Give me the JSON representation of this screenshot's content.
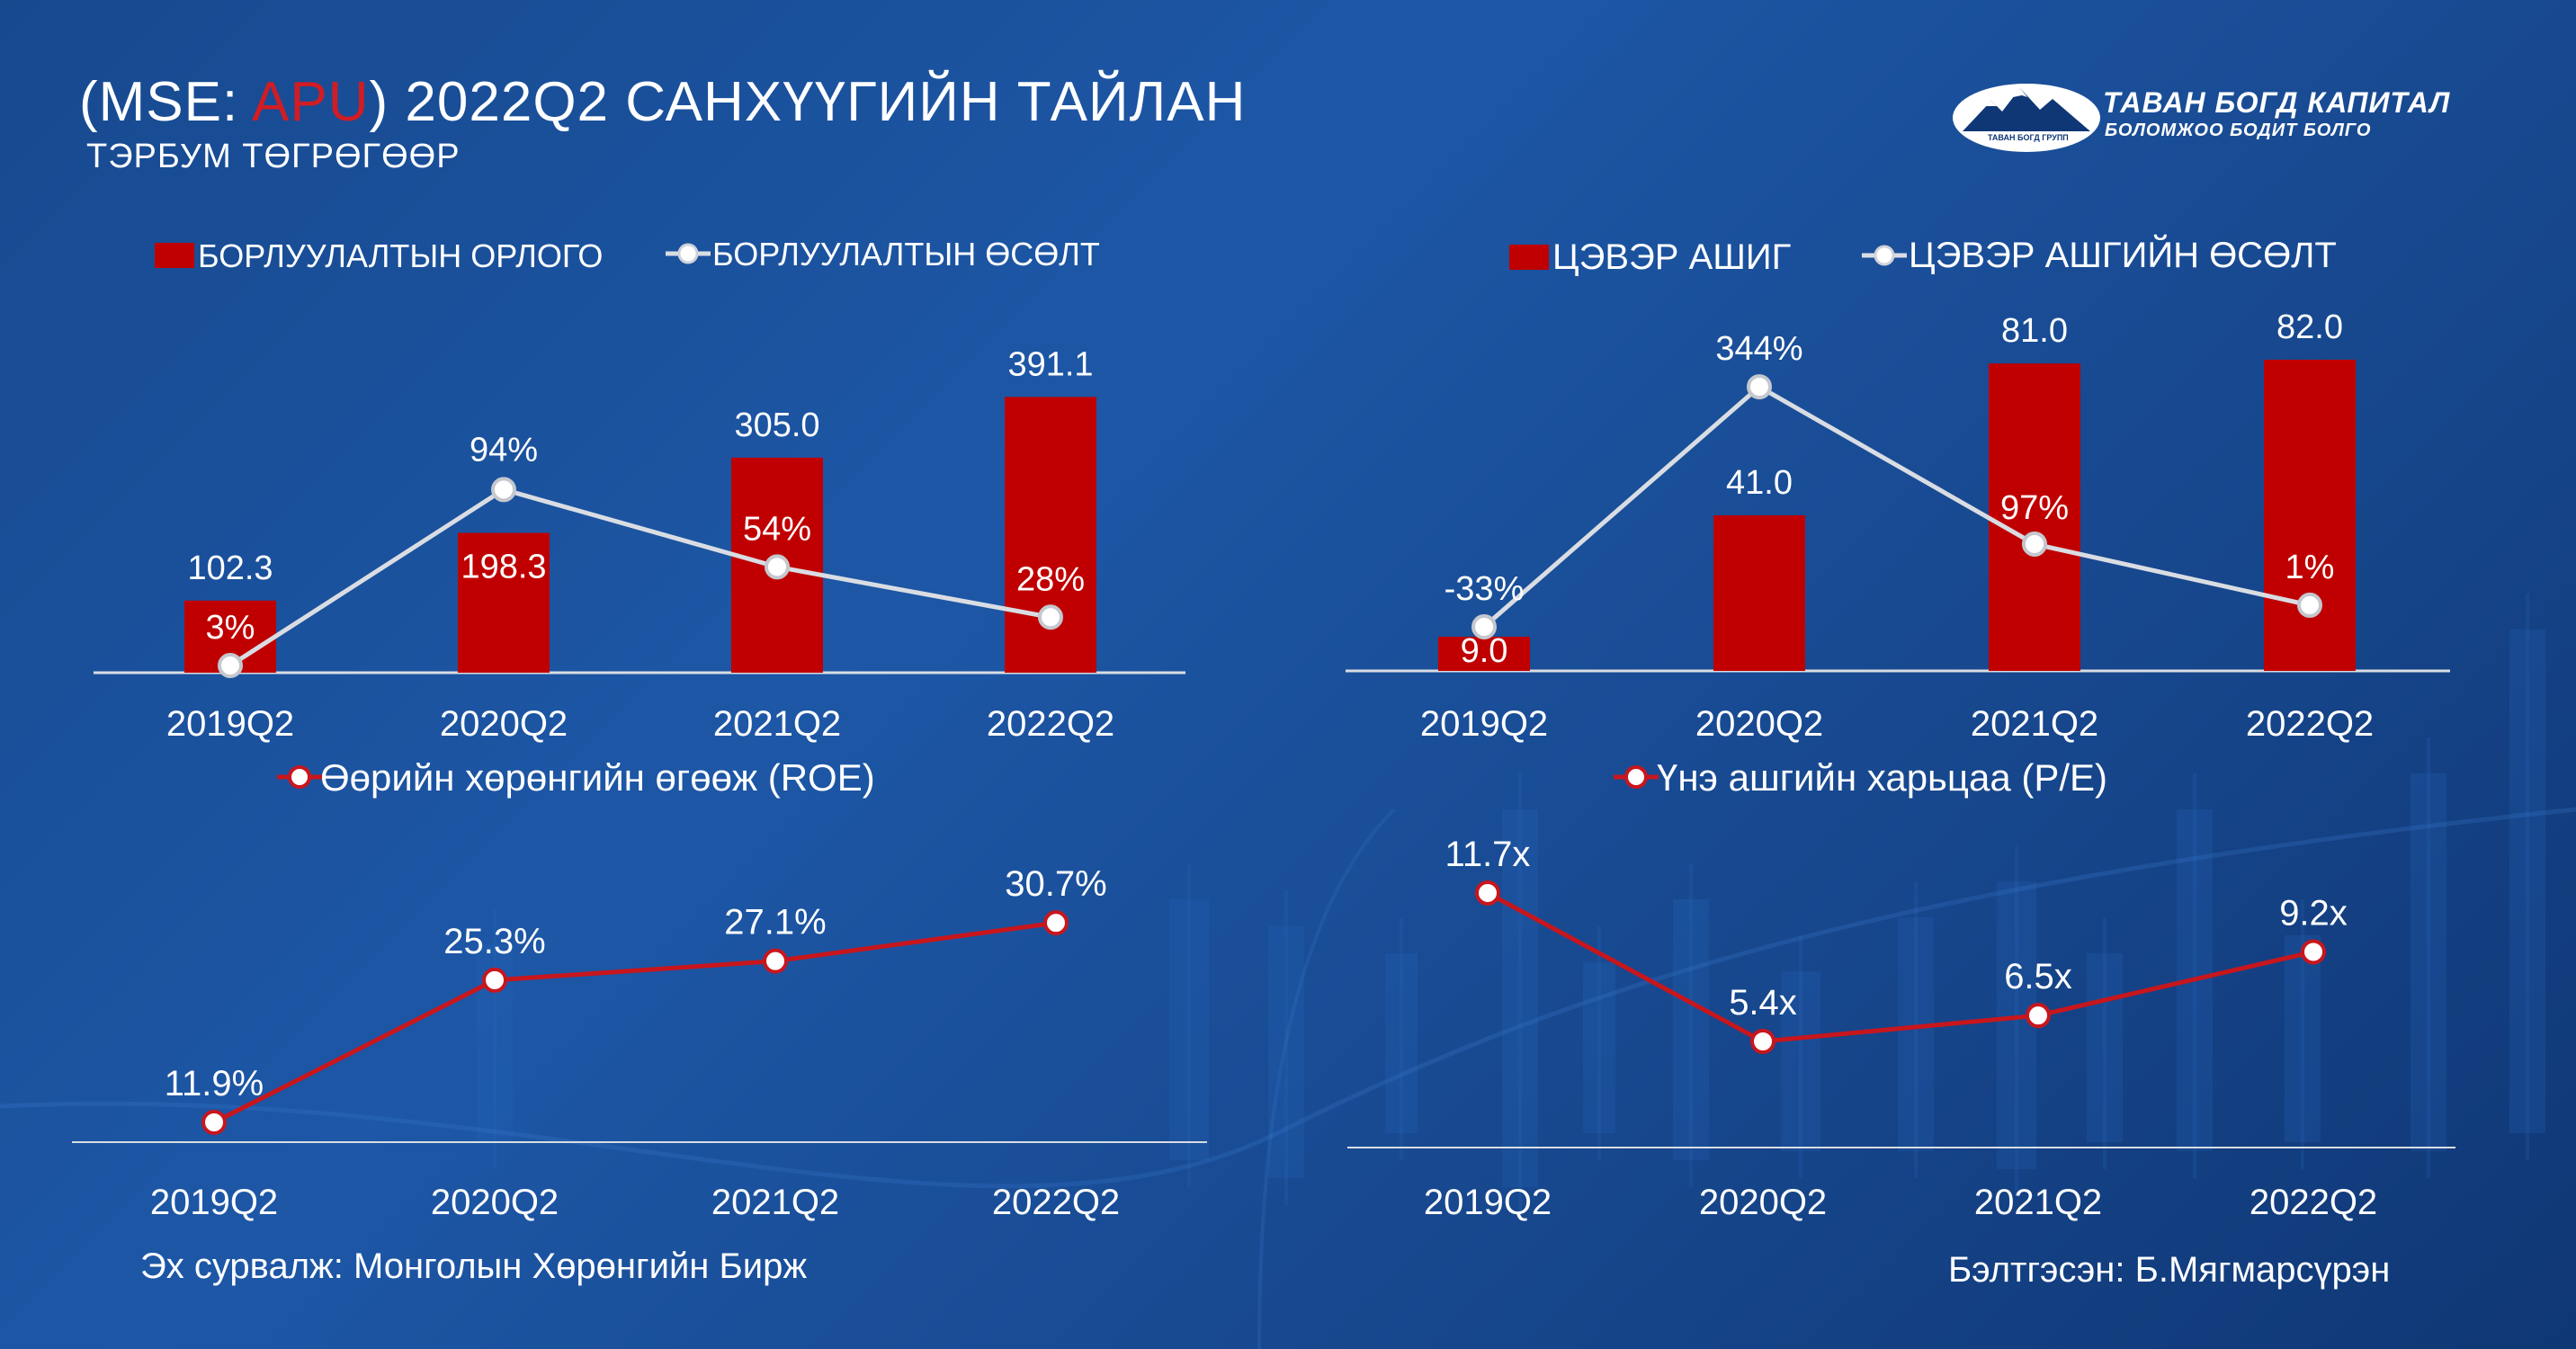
{
  "header": {
    "title_prefix": "(MSE: ",
    "ticker": "APU",
    "title_suffix": ") 2022Q2 САНХҮҮГИЙН ТАЙЛАН",
    "subtitle": "ТЭРБУМ ТӨГРӨГӨӨР"
  },
  "logo": {
    "name": "ТАВАН БОГД КАПИТАЛ",
    "slogan": "БОЛОМЖОО БОДИТ БОЛГО",
    "small_text": "ТАВАН БОГД ГРУПП"
  },
  "colors": {
    "bar": "#c00000",
    "growth_line": "#d9dde3",
    "ratio_line": "#c8161d",
    "ticker": "#d21c24"
  },
  "footer": {
    "source": "Эх сурвалж: Монголын Хөрөнгийн Бирж",
    "prepared_by": "Бэлтгэсэн: Б.Мягмарсүрэн"
  },
  "chart_data": [
    {
      "type": "bar",
      "categories": [
        "2019Q2",
        "2020Q2",
        "2021Q2",
        "2022Q2"
      ],
      "bar_series": {
        "name": "БОРЛУУЛАЛТЫН ОРЛОГО",
        "values": [
          102.3,
          198.3,
          305.0,
          391.1
        ],
        "labels": [
          "102.3",
          "198.3",
          "305.0",
          "391.1"
        ]
      },
      "line_series": {
        "name": "БОРЛУУЛАЛТЫН ӨСӨЛТ",
        "values": [
          3,
          94,
          54,
          28
        ],
        "labels": [
          "3%",
          "94%",
          "54%",
          "28%"
        ]
      },
      "legend": "top"
    },
    {
      "type": "bar",
      "categories": [
        "2019Q2",
        "2020Q2",
        "2021Q2",
        "2022Q2"
      ],
      "bar_series": {
        "name": "ЦЭВЭР АШИГ",
        "values": [
          9.0,
          41.0,
          81.0,
          82.0
        ],
        "labels": [
          "9.0",
          "41.0",
          "81.0",
          "82.0"
        ]
      },
      "line_series": {
        "name": "ЦЭВЭР АШГИЙН ӨСӨЛТ",
        "values": [
          -33,
          344,
          97,
          1
        ],
        "labels": [
          "-33%",
          "344%",
          "97%",
          "1%"
        ]
      },
      "legend": "top"
    },
    {
      "type": "line",
      "categories": [
        "2019Q2",
        "2020Q2",
        "2021Q2",
        "2022Q2"
      ],
      "series": [
        {
          "name": "Өөрийн хөрөнгийн өгөөж (ROE)",
          "values": [
            11.9,
            25.3,
            27.1,
            30.7
          ],
          "labels": [
            "11.9%",
            "25.3%",
            "27.1%",
            "30.7%"
          ]
        }
      ],
      "legend": "top"
    },
    {
      "type": "line",
      "categories": [
        "2019Q2",
        "2020Q2",
        "2021Q2",
        "2022Q2"
      ],
      "series": [
        {
          "name": "Үнэ ашгийн харьцаа (P/E)",
          "values": [
            11.7,
            5.4,
            6.5,
            9.2
          ],
          "labels": [
            "11.7x",
            "5.4x",
            "6.5x",
            "9.2x"
          ]
        }
      ],
      "legend": "top"
    }
  ]
}
